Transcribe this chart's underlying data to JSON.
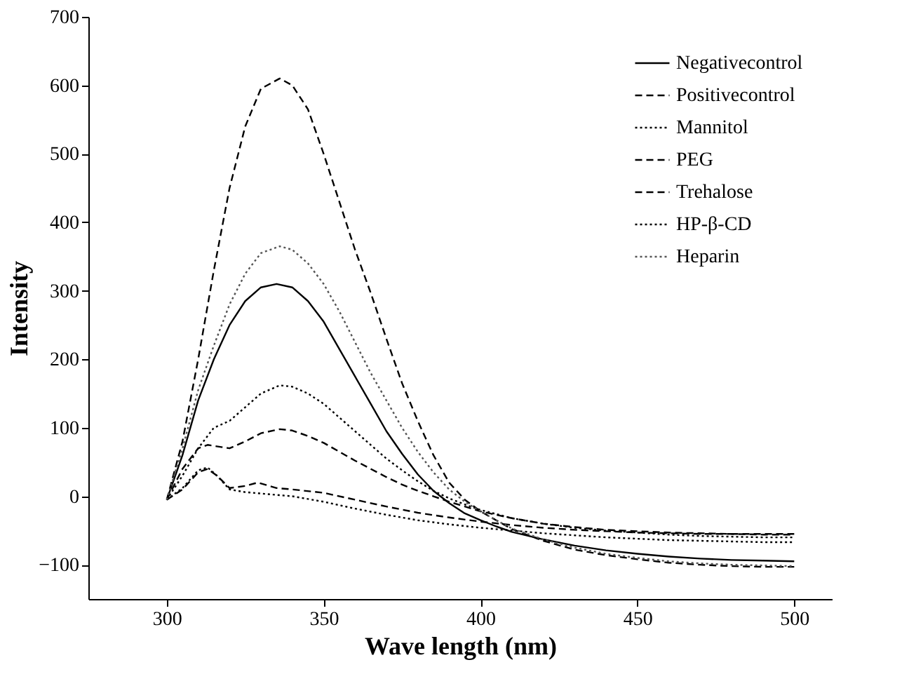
{
  "chart_data": {
    "type": "line",
    "xlabel": "Wave length (nm)",
    "ylabel": "Intensity",
    "xlim": [
      275,
      512
    ],
    "xticks": [
      300,
      350,
      400,
      450,
      500
    ],
    "ylim": [
      -150,
      700
    ],
    "yticks": [
      -100,
      0,
      100,
      200,
      300,
      400,
      500,
      600,
      700
    ],
    "grid": false,
    "legend": "top right",
    "marker": "none",
    "series": [
      {
        "name": "Negativecontrol",
        "color": "#000000",
        "line_style": "solid",
        "x": [
          300,
          305,
          310,
          315,
          320,
          325,
          330,
          335,
          340,
          345,
          350,
          355,
          360,
          365,
          370,
          375,
          380,
          385,
          390,
          395,
          400,
          405,
          410,
          420,
          430,
          440,
          450,
          460,
          470,
          480,
          490,
          500
        ],
        "values": [
          -5,
          60,
          140,
          200,
          250,
          285,
          305,
          310,
          305,
          285,
          255,
          215,
          175,
          135,
          95,
          62,
          32,
          8,
          -10,
          -25,
          -35,
          -44,
          -52,
          -63,
          -72,
          -79,
          -84,
          -88,
          -91,
          -93,
          -94,
          -95
        ]
      },
      {
        "name": "Positivecontrol",
        "color": "#000000",
        "line_style": "dashed",
        "x": [
          300,
          305,
          310,
          315,
          320,
          325,
          330,
          336,
          340,
          345,
          350,
          355,
          360,
          365,
          370,
          375,
          380,
          385,
          390,
          395,
          400,
          405,
          410,
          420,
          430,
          440,
          450,
          460,
          470,
          480,
          490,
          500
        ],
        "values": [
          -5,
          80,
          200,
          330,
          450,
          540,
          595,
          610,
          600,
          565,
          500,
          430,
          360,
          297,
          230,
          165,
          110,
          60,
          20,
          -5,
          -22,
          -35,
          -48,
          -65,
          -78,
          -86,
          -92,
          -97,
          -100,
          -102,
          -103,
          -103
        ]
      },
      {
        "name": "Mannitol",
        "color": "#000000",
        "line_style": "dotted",
        "x": [
          300,
          305,
          310,
          315,
          320,
          325,
          330,
          336,
          340,
          345,
          350,
          355,
          360,
          365,
          370,
          375,
          380,
          385,
          390,
          395,
          400,
          410,
          420,
          430,
          440,
          450,
          460,
          470,
          480,
          490,
          500
        ],
        "values": [
          -5,
          30,
          70,
          100,
          110,
          130,
          150,
          162,
          160,
          150,
          135,
          115,
          95,
          75,
          55,
          38,
          22,
          8,
          -3,
          -12,
          -20,
          -32,
          -40,
          -46,
          -50,
          -53,
          -56,
          -58,
          -59,
          -60,
          -60
        ]
      },
      {
        "name": "PEG",
        "color": "#000000",
        "line_style": "dashed",
        "x": [
          300,
          305,
          310,
          313,
          320,
          325,
          330,
          336,
          340,
          345,
          350,
          355,
          360,
          365,
          370,
          375,
          380,
          385,
          390,
          395,
          400,
          410,
          420,
          430,
          440,
          450,
          460,
          470,
          480,
          490,
          500
        ],
        "values": [
          -5,
          40,
          70,
          75,
          70,
          80,
          92,
          98,
          96,
          88,
          78,
          65,
          52,
          40,
          28,
          17,
          8,
          0,
          -8,
          -15,
          -22,
          -32,
          -40,
          -45,
          -49,
          -51,
          -53,
          -54,
          -55,
          -55,
          -55
        ]
      },
      {
        "name": "Trehalose",
        "color": "#000000",
        "line_style": "dashed",
        "x": [
          300,
          305,
          310,
          313,
          316,
          320,
          325,
          329,
          335,
          340,
          350,
          360,
          370,
          380,
          390,
          400,
          410,
          420,
          430,
          440,
          450,
          460,
          470,
          480,
          490,
          500
        ],
        "values": [
          -5,
          10,
          35,
          40,
          30,
          12,
          15,
          20,
          12,
          10,
          5,
          -5,
          -15,
          -24,
          -31,
          -37,
          -42,
          -46,
          -49,
          -51,
          -53,
          -54,
          -55,
          -55,
          -56,
          -56
        ]
      },
      {
        "name": "HP-β-CD",
        "color": "#000000",
        "line_style": "dotted",
        "x": [
          300,
          305,
          310,
          313,
          316,
          320,
          325,
          330,
          340,
          350,
          360,
          370,
          380,
          390,
          400,
          410,
          420,
          430,
          440,
          450,
          460,
          470,
          480,
          490,
          500
        ],
        "values": [
          -5,
          12,
          38,
          42,
          30,
          10,
          6,
          4,
          0,
          -8,
          -18,
          -27,
          -35,
          -41,
          -46,
          -50,
          -54,
          -57,
          -60,
          -62,
          -64,
          -65,
          -66,
          -67,
          -67
        ]
      },
      {
        "name": "Heparin",
        "color": "#555555",
        "line_style": "dotted",
        "x": [
          300,
          305,
          310,
          315,
          320,
          325,
          330,
          336,
          340,
          345,
          350,
          355,
          360,
          365,
          370,
          375,
          380,
          385,
          390,
          395,
          400,
          405,
          410,
          420,
          430,
          440,
          450,
          460,
          470,
          480,
          490,
          500
        ],
        "values": [
          -5,
          70,
          155,
          220,
          280,
          325,
          355,
          365,
          360,
          340,
          310,
          270,
          225,
          180,
          140,
          100,
          65,
          35,
          10,
          -8,
          -22,
          -35,
          -47,
          -63,
          -75,
          -84,
          -90,
          -95,
          -98,
          -100,
          -101,
          -102
        ]
      }
    ]
  }
}
